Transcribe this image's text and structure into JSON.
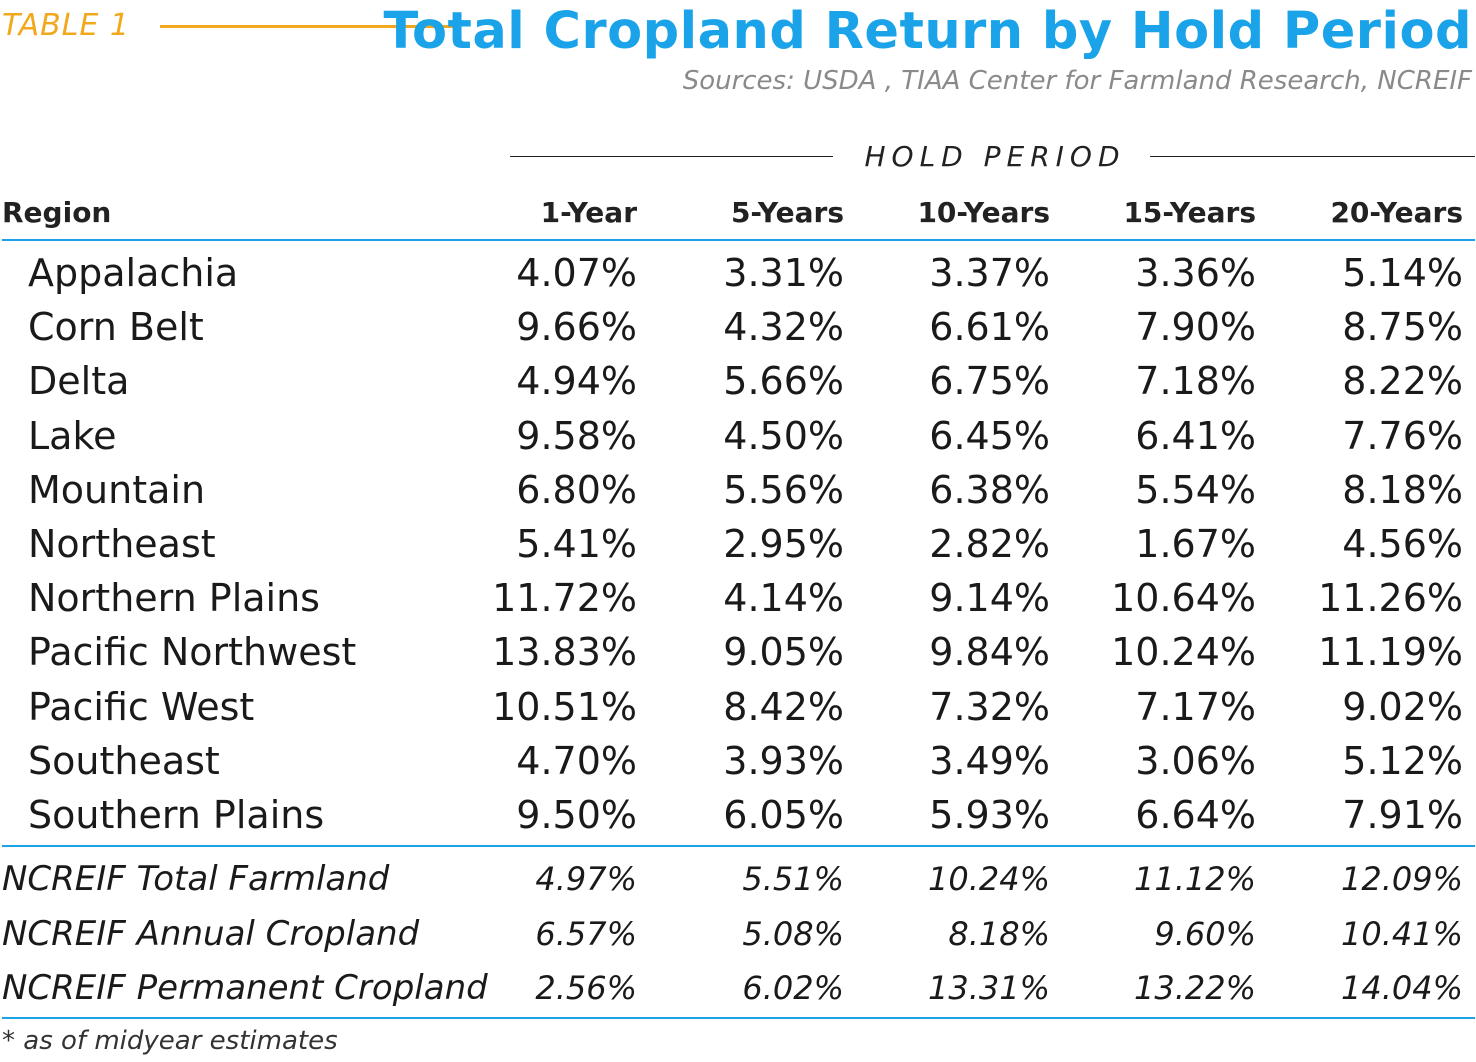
{
  "header": {
    "table_label": "TABLE 1",
    "title": "Total Cropland Return by Hold Period",
    "sources": "Sources: USDA , TIAA Center for Farmland Research, NCREIF",
    "hold_period_label": "HOLD PERIOD"
  },
  "columns": [
    "Region",
    "1-Year",
    "5-Years",
    "10-Years",
    "15-Years",
    "20-Years"
  ],
  "regions": [
    {
      "name": "Appalachia",
      "values": [
        "4.07%",
        "3.31%",
        "3.37%",
        "3.36%",
        "5.14%"
      ]
    },
    {
      "name": "Corn Belt",
      "values": [
        "9.66%",
        "4.32%",
        "6.61%",
        "7.90%",
        "8.75%"
      ]
    },
    {
      "name": "Delta",
      "values": [
        "4.94%",
        "5.66%",
        "6.75%",
        "7.18%",
        "8.22%"
      ]
    },
    {
      "name": "Lake",
      "values": [
        "9.58%",
        "4.50%",
        "6.45%",
        "6.41%",
        "7.76%"
      ]
    },
    {
      "name": "Mountain",
      "values": [
        "6.80%",
        "5.56%",
        "6.38%",
        "5.54%",
        "8.18%"
      ]
    },
    {
      "name": "Northeast",
      "values": [
        "5.41%",
        "2.95%",
        "2.82%",
        "1.67%",
        "4.56%"
      ]
    },
    {
      "name": "Northern Plains",
      "values": [
        "11.72%",
        "4.14%",
        "9.14%",
        "10.64%",
        "11.26%"
      ]
    },
    {
      "name": "Pacific Northwest",
      "values": [
        "13.83%",
        "9.05%",
        "9.84%",
        "10.24%",
        "11.19%"
      ]
    },
    {
      "name": "Pacific West",
      "values": [
        "10.51%",
        "8.42%",
        "7.32%",
        "7.17%",
        "9.02%"
      ]
    },
    {
      "name": "Southeast",
      "values": [
        "4.70%",
        "3.93%",
        "3.49%",
        "3.06%",
        "5.12%"
      ]
    },
    {
      "name": "Southern Plains",
      "values": [
        "9.50%",
        "6.05%",
        "5.93%",
        "6.64%",
        "7.91%"
      ]
    }
  ],
  "ncreif": [
    {
      "name": "NCREIF Total Farmland",
      "values": [
        "4.97%",
        "5.51%",
        "10.24%",
        "11.12%",
        "12.09%"
      ]
    },
    {
      "name": "NCREIF Annual Cropland",
      "values": [
        "6.57%",
        "5.08%",
        "8.18%",
        "9.60%",
        "10.41%"
      ]
    },
    {
      "name": "NCREIF Permanent Cropland",
      "values": [
        "2.56%",
        "6.02%",
        "13.31%",
        "13.22%",
        "14.04%"
      ]
    }
  ],
  "footnote": "* as of midyear estimates",
  "colors": {
    "accent_blue": "#1aa3e8",
    "accent_orange": "#f2a81d"
  }
}
